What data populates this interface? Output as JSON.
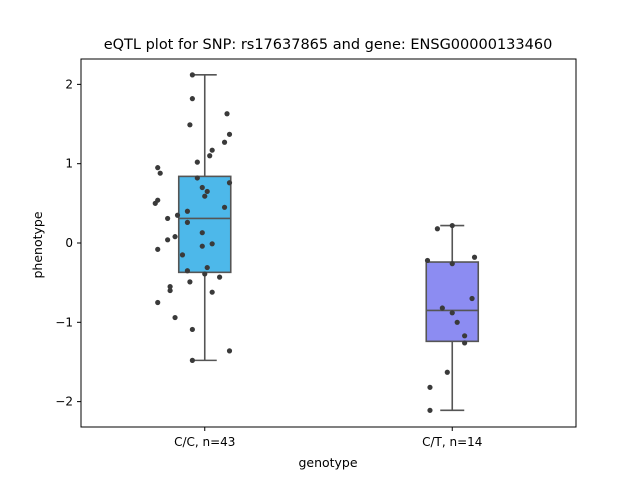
{
  "chart_data": {
    "type": "box",
    "title": "eQTL plot for SNP: rs17637865 and gene: ENSG00000133460",
    "xlabel": "genotype",
    "ylabel": "phenotype",
    "ylim": [
      -2.32,
      2.32
    ],
    "yticks": [
      -2,
      -1,
      0,
      1,
      2
    ],
    "ytick_labels": [
      "−2",
      "−1",
      "0",
      "1",
      "2"
    ],
    "grid": false,
    "legend": "none",
    "categories": [
      "C/C, n=43",
      "C/T, n=14"
    ],
    "boxes": [
      {
        "category": "C/C, n=43",
        "color": "#4db8ea",
        "whisker_low": -1.48,
        "q1": -0.37,
        "median": 0.31,
        "q3": 0.84,
        "whisker_high": 2.12,
        "points": [
          {
            "x": -0.05,
            "y": 2.12
          },
          {
            "x": -0.05,
            "y": 1.82
          },
          {
            "x": 0.09,
            "y": 1.63
          },
          {
            "x": -0.06,
            "y": 1.49
          },
          {
            "x": 0.1,
            "y": 1.37
          },
          {
            "x": 0.08,
            "y": 1.27
          },
          {
            "x": 0.03,
            "y": 1.17
          },
          {
            "x": 0.02,
            "y": 1.1
          },
          {
            "x": -0.03,
            "y": 1.02
          },
          {
            "x": -0.19,
            "y": 0.95
          },
          {
            "x": -0.18,
            "y": 0.88
          },
          {
            "x": -0.03,
            "y": 0.82
          },
          {
            "x": 0.1,
            "y": 0.76
          },
          {
            "x": -0.01,
            "y": 0.7
          },
          {
            "x": 0.01,
            "y": 0.65
          },
          {
            "x": 0.0,
            "y": 0.59
          },
          {
            "x": -0.19,
            "y": 0.54
          },
          {
            "x": -0.2,
            "y": 0.5
          },
          {
            "x": 0.08,
            "y": 0.45
          },
          {
            "x": -0.07,
            "y": 0.4
          },
          {
            "x": -0.11,
            "y": 0.35
          },
          {
            "x": -0.15,
            "y": 0.31
          },
          {
            "x": -0.07,
            "y": 0.26
          },
          {
            "x": -0.01,
            "y": 0.13
          },
          {
            "x": -0.12,
            "y": 0.08
          },
          {
            "x": -0.15,
            "y": 0.04
          },
          {
            "x": 0.03,
            "y": -0.01
          },
          {
            "x": -0.01,
            "y": -0.04
          },
          {
            "x": -0.19,
            "y": -0.08
          },
          {
            "x": -0.09,
            "y": -0.15
          },
          {
            "x": 0.01,
            "y": -0.31
          },
          {
            "x": -0.07,
            "y": -0.35
          },
          {
            "x": 0.06,
            "y": -0.43
          },
          {
            "x": -0.0,
            "y": -0.39
          },
          {
            "x": -0.06,
            "y": -0.49
          },
          {
            "x": -0.14,
            "y": -0.55
          },
          {
            "x": -0.14,
            "y": -0.6
          },
          {
            "x": 0.03,
            "y": -0.62
          },
          {
            "x": -0.19,
            "y": -0.75
          },
          {
            "x": -0.12,
            "y": -0.94
          },
          {
            "x": -0.05,
            "y": -1.09
          },
          {
            "x": 0.1,
            "y": -1.36
          },
          {
            "x": -0.05,
            "y": -1.48
          }
        ]
      },
      {
        "category": "C/T, n=14",
        "color": "#8c8cf2",
        "whisker_low": -2.11,
        "q1": -1.24,
        "median": -0.85,
        "q3": -0.24,
        "whisker_high": 0.22,
        "points": [
          {
            "x": -0.0,
            "y": 0.22
          },
          {
            "x": -0.06,
            "y": 0.18
          },
          {
            "x": 0.09,
            "y": -0.18
          },
          {
            "x": -0.1,
            "y": -0.22
          },
          {
            "x": -0.0,
            "y": -0.26
          },
          {
            "x": 0.08,
            "y": -0.7
          },
          {
            "x": -0.04,
            "y": -0.82
          },
          {
            "x": -0.0,
            "y": -0.88
          },
          {
            "x": 0.02,
            "y": -1.0
          },
          {
            "x": 0.05,
            "y": -1.17
          },
          {
            "x": 0.05,
            "y": -1.26
          },
          {
            "x": -0.02,
            "y": -1.63
          },
          {
            "x": -0.09,
            "y": -1.82
          },
          {
            "x": -0.09,
            "y": -2.11
          }
        ]
      }
    ]
  }
}
